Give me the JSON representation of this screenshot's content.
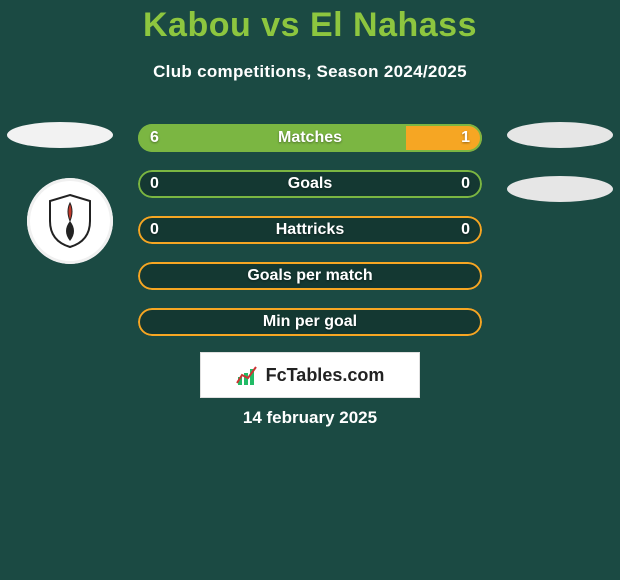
{
  "background_color": "#1b4a43",
  "title": {
    "text": "Kabou vs El Nahass",
    "color": "#8dc63f",
    "fontsize": 34,
    "fontweight": 800
  },
  "subtitle": {
    "text": "Club competitions, Season 2024/2025",
    "color": "#ffffff",
    "fontsize": 17
  },
  "colors": {
    "left_fill": "#7bb642",
    "right_fill": "#f6a623",
    "empty_fill": "#143832",
    "text_on_bar": "#ffffff",
    "border_left": "#7bb642",
    "border_right": "#f6a623",
    "border_empty": "#7bb642"
  },
  "bars": [
    {
      "label": "Matches",
      "left_val": "6",
      "right_val": "1",
      "left_frac": 0.78,
      "right_frac": 0.22,
      "left_color": "#7bb642",
      "right_color": "#f6a623",
      "border": "#7bb642"
    },
    {
      "label": "Goals",
      "left_val": "0",
      "right_val": "0",
      "left_frac": 0,
      "right_frac": 0,
      "fill": "#143832",
      "border": "#7bb642"
    },
    {
      "label": "Hattricks",
      "left_val": "0",
      "right_val": "0",
      "left_frac": 0,
      "right_frac": 0,
      "fill": "#143832",
      "border": "#f6a623"
    },
    {
      "label": "Goals per match",
      "left_val": "",
      "right_val": "",
      "left_frac": 0,
      "right_frac": 0,
      "fill": "#143832",
      "border": "#f6a623"
    },
    {
      "label": "Min per goal",
      "left_val": "",
      "right_val": "",
      "left_frac": 0,
      "right_frac": 0,
      "fill": "#143832",
      "border": "#f6a623"
    }
  ],
  "branding": {
    "text": "FcTables.com"
  },
  "footer": {
    "text": "14 february 2025",
    "color": "#ffffff"
  }
}
